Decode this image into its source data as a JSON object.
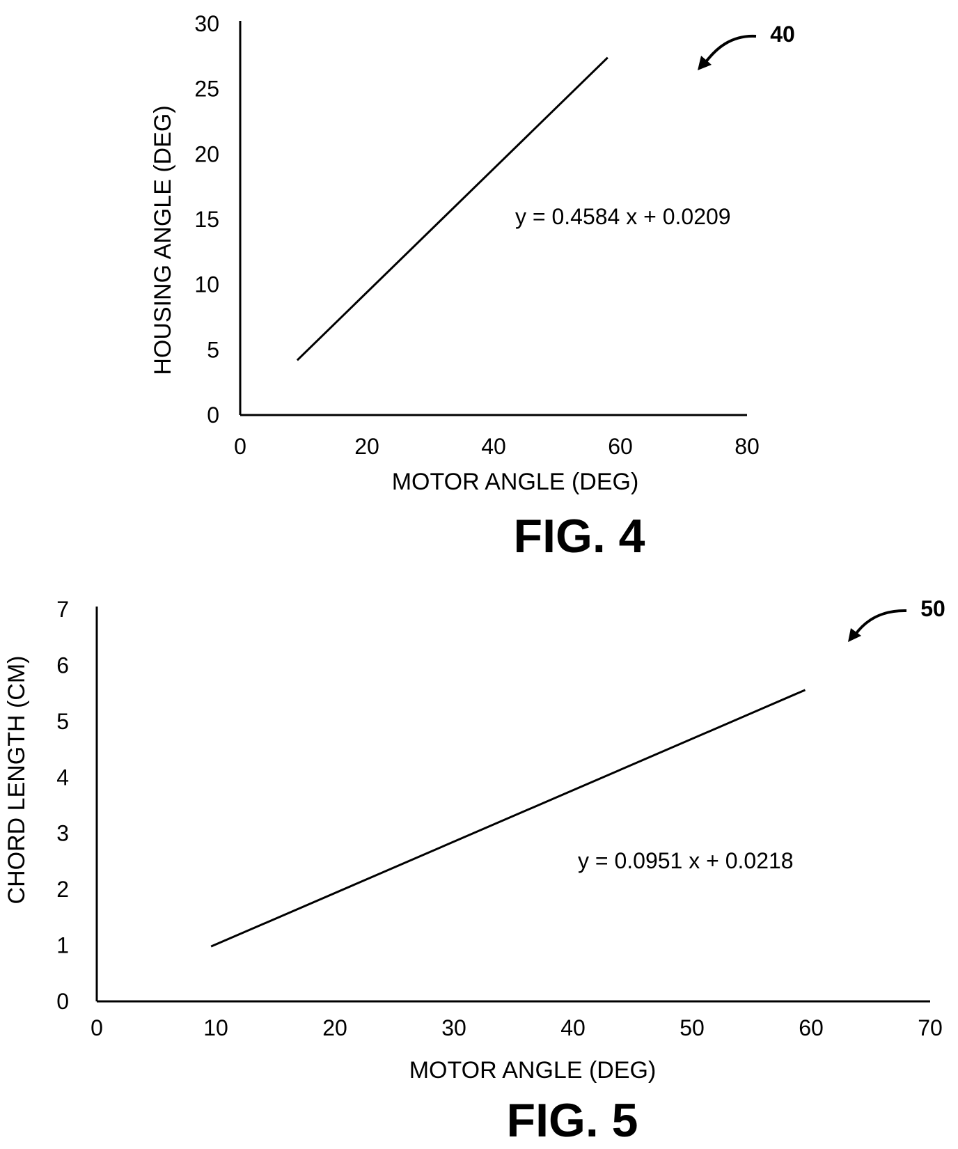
{
  "chart_data": [
    {
      "type": "line",
      "xlabel": "MOTOR ANGLE (DEG)",
      "ylabel": "HOUSING ANGLE (DEG)",
      "xlim": [
        0,
        80
      ],
      "ylim": [
        0,
        30
      ],
      "xticks": [
        "0",
        "20",
        "40",
        "60",
        "80"
      ],
      "yticks": [
        "0",
        "5",
        "10",
        "15",
        "20",
        "25",
        "30"
      ],
      "x": [
        9,
        58
      ],
      "y": [
        4.2,
        27.4
      ],
      "annotation": "y = 0.4584 x + 0.0209",
      "figure_label": "FIG. 4",
      "reference_numeral": "40",
      "grid": false,
      "color": "#000000"
    },
    {
      "type": "line",
      "xlabel": "MOTOR ANGLE (DEG)",
      "ylabel": "CHORD LENGTH (CM)",
      "xlim": [
        0,
        70
      ],
      "ylim": [
        0,
        7
      ],
      "xticks": [
        "0",
        "10",
        "20",
        "30",
        "40",
        "50",
        "60",
        "70"
      ],
      "yticks": [
        "0",
        "1",
        "2",
        "3",
        "4",
        "5",
        "6",
        "7"
      ],
      "x": [
        9.6,
        59.5
      ],
      "y": [
        0.98,
        5.56
      ],
      "annotation": "y = 0.0951 x + 0.0218",
      "figure_label": "FIG. 5",
      "reference_numeral": "50",
      "grid": false,
      "color": "#000000"
    }
  ]
}
